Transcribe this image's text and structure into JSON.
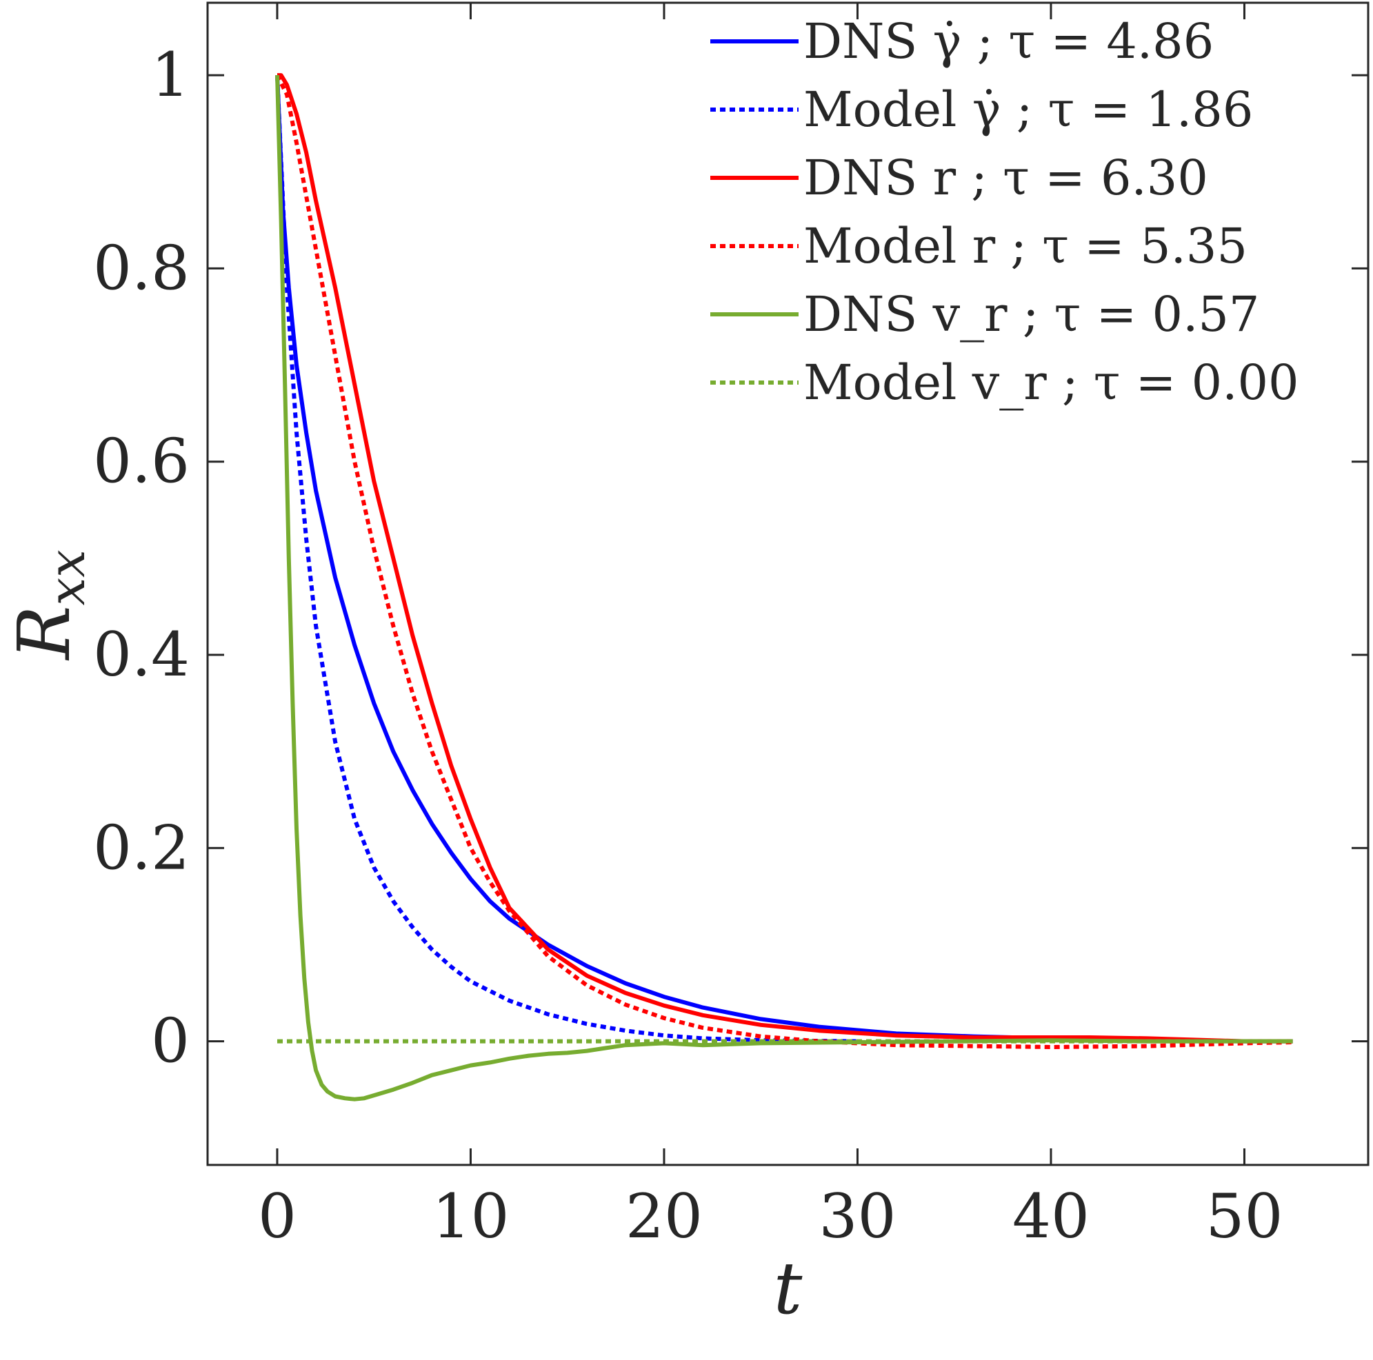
{
  "chart_data": {
    "type": "line",
    "title": "",
    "xlabel": "t",
    "ylabel": "R_xx",
    "ylabel_main": "R",
    "ylabel_sub": "xx",
    "xlim": [
      -3.6,
      56.4
    ],
    "ylim": [
      -0.128,
      1.075
    ],
    "xticks": [
      0,
      10,
      20,
      30,
      40,
      50
    ],
    "xtick_labels": [
      "0",
      "10",
      "20",
      "30",
      "40",
      "50"
    ],
    "yticks": [
      0,
      0.2,
      0.4,
      0.6,
      0.8,
      1
    ],
    "ytick_labels": [
      "0",
      "0.2",
      "0.4",
      "0.6",
      "0.8",
      "1"
    ],
    "grid": false,
    "legend_position": "top-right",
    "series": [
      {
        "name": "DNS γ̇ ; τ = 4.86",
        "legend": "DNS γ̇ ; τ = 4.86",
        "color": "#0000ff",
        "style": "solid",
        "x": [
          0,
          0.3,
          0.6,
          1,
          1.5,
          2,
          3,
          4,
          5,
          6,
          7,
          8,
          9,
          10,
          11,
          12,
          14,
          16,
          18,
          20,
          22,
          25,
          28,
          32,
          36,
          40,
          45,
          50,
          52.5
        ],
        "y": [
          1,
          0.86,
          0.78,
          0.7,
          0.63,
          0.57,
          0.48,
          0.41,
          0.35,
          0.3,
          0.26,
          0.225,
          0.195,
          0.168,
          0.145,
          0.127,
          0.1,
          0.078,
          0.06,
          0.046,
          0.035,
          0.023,
          0.015,
          0.008,
          0.005,
          0.003,
          0.002,
          0.0,
          0.0
        ]
      },
      {
        "name": "Model γ̇ ; τ = 1.86",
        "legend": "Model γ̇ ; τ = 1.86",
        "color": "#0000ff",
        "style": "dotted",
        "x": [
          0,
          0.5,
          1,
          1.5,
          2,
          3,
          4,
          5,
          6,
          7,
          8,
          9,
          10,
          12,
          14,
          16,
          18,
          20,
          22,
          25,
          30
        ],
        "y": [
          1,
          0.78,
          0.63,
          0.52,
          0.43,
          0.31,
          0.23,
          0.18,
          0.145,
          0.118,
          0.095,
          0.077,
          0.062,
          0.042,
          0.028,
          0.018,
          0.011,
          0.006,
          0.003,
          0.001,
          0.0
        ]
      },
      {
        "name": "DNS r ; τ = 6.30",
        "legend": "DNS r ; τ = 6.30",
        "color": "#ff0000",
        "style": "solid",
        "x": [
          0,
          0.2,
          0.5,
          1,
          1.5,
          2,
          3,
          4,
          5,
          6,
          7,
          8,
          9,
          10,
          11,
          12,
          14,
          16,
          18,
          20,
          22,
          25,
          28,
          32,
          36,
          40,
          42,
          45,
          50,
          52.5
        ],
        "y": [
          1,
          1.0,
          0.99,
          0.96,
          0.92,
          0.87,
          0.78,
          0.68,
          0.58,
          0.5,
          0.42,
          0.35,
          0.285,
          0.23,
          0.18,
          0.138,
          0.095,
          0.068,
          0.05,
          0.037,
          0.027,
          0.017,
          0.011,
          0.006,
          0.004,
          0.004,
          0.004,
          0.003,
          0.0,
          0.0
        ]
      },
      {
        "name": "Model r ; τ = 5.35",
        "legend": "Model r ; τ = 5.35",
        "color": "#ff0000",
        "style": "dotted",
        "x": [
          0,
          0.5,
          1,
          2,
          3,
          4,
          5,
          6,
          7,
          8,
          9,
          10,
          11,
          12,
          14,
          16,
          18,
          20,
          22,
          25,
          28,
          32,
          36,
          40,
          45,
          50,
          52.5
        ],
        "y": [
          1,
          0.98,
          0.93,
          0.82,
          0.71,
          0.6,
          0.51,
          0.43,
          0.36,
          0.3,
          0.25,
          0.2,
          0.165,
          0.135,
          0.088,
          0.058,
          0.038,
          0.024,
          0.014,
          0.005,
          0.0,
          -0.004,
          -0.005,
          -0.006,
          -0.005,
          -0.002,
          -0.001
        ]
      },
      {
        "name": "DNS v_r ; τ = 0.57",
        "legend": "DNS v_r ; τ = 0.57",
        "color": "#77ac30",
        "style": "solid",
        "x": [
          0,
          0.2,
          0.4,
          0.6,
          0.8,
          1.0,
          1.2,
          1.4,
          1.6,
          1.8,
          2.0,
          2.3,
          2.6,
          3.0,
          3.5,
          4.0,
          4.5,
          5,
          6,
          7,
          8,
          9,
          10,
          11,
          12,
          13,
          14,
          15,
          16,
          17,
          18,
          20,
          22,
          25,
          30,
          35,
          40,
          45,
          50,
          52.5
        ],
        "y": [
          1,
          0.85,
          0.68,
          0.5,
          0.35,
          0.22,
          0.13,
          0.065,
          0.02,
          -0.01,
          -0.03,
          -0.045,
          -0.052,
          -0.057,
          -0.059,
          -0.06,
          -0.059,
          -0.056,
          -0.05,
          -0.043,
          -0.035,
          -0.03,
          -0.025,
          -0.022,
          -0.018,
          -0.015,
          -0.013,
          -0.012,
          -0.01,
          -0.007,
          -0.004,
          -0.002,
          -0.004,
          -0.002,
          -0.001,
          0.0,
          0.001,
          0.0,
          0.0,
          0.0
        ]
      },
      {
        "name": "Model v_r ; τ = 0.00",
        "legend": "Model v_r ; τ = 0.00",
        "color": "#77ac30",
        "style": "dotted",
        "x": [
          0,
          52.5
        ],
        "y": [
          0,
          0
        ]
      }
    ]
  }
}
